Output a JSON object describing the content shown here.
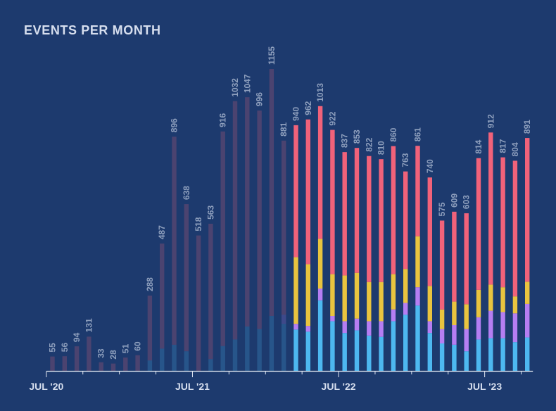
{
  "chart_data": {
    "type": "bar",
    "title": "EVENTS PER MONTH",
    "xlabel": "",
    "ylabel": "",
    "stacked": true,
    "categories": [
      "2020-07",
      "2020-08",
      "2020-09",
      "2020-10",
      "2020-11",
      "2020-12",
      "2021-01",
      "2021-02",
      "2021-03",
      "2021-04",
      "2021-05",
      "2021-06",
      "2021-07",
      "2021-08",
      "2021-09",
      "2021-10",
      "2021-11",
      "2021-12",
      "2022-01",
      "2022-02",
      "2022-03",
      "2022-04",
      "2022-05",
      "2022-06",
      "2022-07",
      "2022-08",
      "2022-09",
      "2022-10",
      "2022-11",
      "2022-12",
      "2023-01",
      "2023-02",
      "2023-03",
      "2023-04",
      "2023-05",
      "2023-06",
      "2023-07",
      "2023-08",
      "2023-09",
      "2023-10"
    ],
    "x_tick_labels": [
      "JUL '20",
      "JUL '21",
      "JUL '22",
      "JUL '23"
    ],
    "x_tick_indices": [
      0,
      12,
      24,
      36
    ],
    "totals": [
      55,
      56,
      94,
      131,
      33,
      28,
      51,
      60,
      288,
      487,
      896,
      638,
      518,
      563,
      916,
      1032,
      1047,
      996,
      1155,
      881,
      940,
      962,
      1013,
      922,
      837,
      853,
      822,
      810,
      860,
      763,
      861,
      740,
      575,
      609,
      603,
      814,
      912,
      817,
      804,
      891
    ],
    "highlight_from_index": 20,
    "series": [
      {
        "name": "blue",
        "color": "#4db8f0",
        "values": [
          0,
          0,
          0,
          0,
          0,
          0,
          0,
          0,
          40,
          85,
          100,
          75,
          0,
          45,
          95,
          120,
          170,
          160,
          210,
          180,
          158,
          150,
          270,
          190,
          145,
          155,
          135,
          130,
          190,
          215,
          250,
          145,
          105,
          100,
          75,
          120,
          125,
          125,
          110,
          128
        ]
      },
      {
        "name": "purple",
        "color": "#b57ef3",
        "values": [
          0,
          0,
          0,
          0,
          0,
          0,
          0,
          0,
          0,
          0,
          0,
          0,
          0,
          0,
          0,
          0,
          0,
          0,
          0,
          35,
          22,
          22,
          45,
          20,
          45,
          45,
          55,
          60,
          45,
          45,
          70,
          45,
          55,
          75,
          85,
          85,
          105,
          100,
          110,
          128
        ]
      },
      {
        "name": "yellow",
        "color": "#e9c43f",
        "values": [
          0,
          0,
          0,
          0,
          0,
          0,
          0,
          0,
          0,
          0,
          0,
          0,
          0,
          0,
          0,
          0,
          0,
          0,
          0,
          0,
          255,
          236,
          190,
          160,
          175,
          175,
          150,
          150,
          135,
          130,
          195,
          135,
          75,
          90,
          95,
          105,
          100,
          95,
          65,
          85
        ]
      },
      {
        "name": "red",
        "color": "#f1627a",
        "values": [
          55,
          56,
          94,
          131,
          33,
          28,
          51,
          60,
          248,
          402,
          796,
          563,
          518,
          518,
          821,
          912,
          877,
          836,
          945,
          666,
          505,
          554,
          508,
          552,
          472,
          478,
          482,
          470,
          490,
          373,
          346,
          415,
          340,
          344,
          348,
          504,
          582,
          497,
          519,
          550
        ]
      }
    ],
    "ylim": [
      0,
      1200
    ],
    "grid": false,
    "legend": "none"
  }
}
